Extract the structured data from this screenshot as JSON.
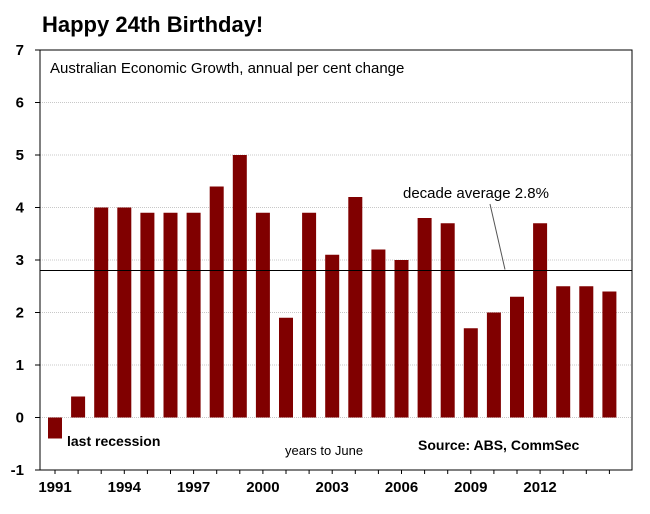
{
  "title": "Happy 24th Birthday!",
  "chart_data": {
    "type": "bar",
    "subtitle": "Australian Economic Growth, annual per cent change",
    "categories": [
      "1991",
      "1992",
      "1993",
      "1994",
      "1995",
      "1996",
      "1997",
      "1998",
      "1999",
      "2000",
      "2001",
      "2002",
      "2003",
      "2004",
      "2005",
      "2006",
      "2007",
      "2008",
      "2009",
      "2010",
      "2011",
      "2012",
      "2013",
      "2014",
      "2015"
    ],
    "values": [
      -0.4,
      0.4,
      4.0,
      4.0,
      3.9,
      3.9,
      3.9,
      4.4,
      5.0,
      3.9,
      1.9,
      3.9,
      3.1,
      4.2,
      3.2,
      3.0,
      3.8,
      3.7,
      1.7,
      2.0,
      2.3,
      3.7,
      2.5,
      2.5,
      2.4
    ],
    "x_tick_labels": [
      "1991",
      "1994",
      "1997",
      "2000",
      "2003",
      "2006",
      "2009",
      "2012"
    ],
    "y_ticks": [
      -1,
      0,
      1,
      2,
      3,
      4,
      5,
      6,
      7
    ],
    "ylim": [
      -1,
      7
    ],
    "bar_color": "#800000",
    "reference_line": {
      "value": 2.8,
      "label": "decade average 2.8%"
    },
    "annotations": {
      "recession": "last recession",
      "xlabel": "years to June",
      "source": "Source: ABS, CommSec"
    },
    "grid": true
  }
}
